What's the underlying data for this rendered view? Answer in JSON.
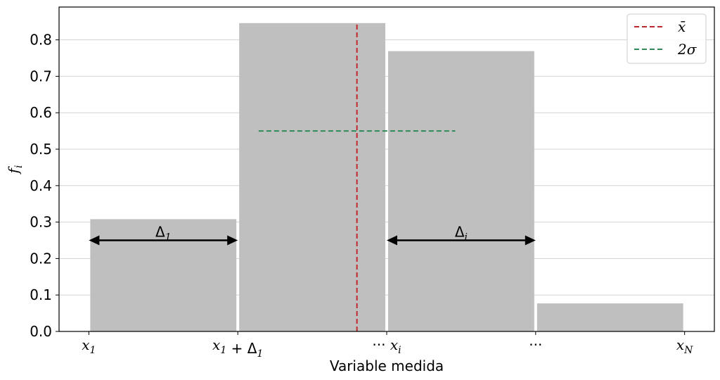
{
  "chart_data": {
    "type": "bar",
    "xlabel": "Variable medida",
    "ylabel": "f_i",
    "ylabel_display": "fi",
    "ylim": [
      0,
      0.89
    ],
    "xlim": [
      -0.2,
      4.2
    ],
    "grid": "horizontal",
    "legend_position": "top-right",
    "yticks": [
      0.0,
      0.1,
      0.2,
      0.3,
      0.4,
      0.5,
      0.6,
      0.7,
      0.8
    ],
    "ytick_labels": [
      "0.0",
      "0.1",
      "0.2",
      "0.3",
      "0.4",
      "0.5",
      "0.6",
      "0.7",
      "0.8"
    ],
    "xticks": [
      {
        "pos": 0,
        "label": "x_1",
        "display": [
          {
            "t": "x",
            "s": "math"
          },
          {
            "t": "1",
            "s": "sub"
          }
        ]
      },
      {
        "pos": 1,
        "label": "x_1 + Δ_1",
        "display": [
          {
            "t": "x",
            "s": "math"
          },
          {
            "t": "1",
            "s": "sub"
          },
          {
            "t": " + Δ",
            "s": "plain"
          },
          {
            "t": "1",
            "s": "sub"
          }
        ]
      },
      {
        "pos": 2,
        "label": "··· x_i",
        "display": [
          {
            "t": "··· ",
            "s": "plain"
          },
          {
            "t": "x",
            "s": "math"
          },
          {
            "t": "i",
            "s": "sub"
          }
        ]
      },
      {
        "pos": 3,
        "label": "···",
        "display": [
          {
            "t": "···",
            "s": "plain"
          }
        ]
      },
      {
        "pos": 4,
        "label": "x_N",
        "display": [
          {
            "t": "x",
            "s": "math"
          },
          {
            "t": "N",
            "s": "sub"
          }
        ]
      }
    ],
    "bars": [
      {
        "x0": 0,
        "x1": 1,
        "value": 0.308
      },
      {
        "x0": 1,
        "x1": 2,
        "value": 0.846
      },
      {
        "x0": 2,
        "x1": 3,
        "value": 0.769
      },
      {
        "x0": 3,
        "x1": 4,
        "value": 0.077
      }
    ],
    "bar_color": "#bfbfbf",
    "mean": {
      "name": "x̄",
      "x": 1.8,
      "ymin": 0,
      "ymax": 0.846,
      "color": "#c0282d"
    },
    "sigma_line": {
      "name": "2σ",
      "x0": 1.14,
      "x1": 2.46,
      "y": 0.55,
      "color": "#2e8b57"
    },
    "annotations": [
      {
        "label": "Δ1",
        "display": [
          {
            "t": "Δ",
            "s": "plain"
          },
          {
            "t": "1",
            "s": "sub"
          }
        ],
        "x0": 0,
        "x1": 1,
        "y": 0.25
      },
      {
        "label": "Δi",
        "display": [
          {
            "t": "Δ",
            "s": "plain"
          },
          {
            "t": "i",
            "s": "sub"
          }
        ],
        "x0": 2,
        "x1": 3,
        "y": 0.25
      }
    ],
    "legend": [
      {
        "label": "x̄",
        "color": "#c0282d"
      },
      {
        "label": "2σ",
        "color": "#2e8b57"
      }
    ]
  }
}
